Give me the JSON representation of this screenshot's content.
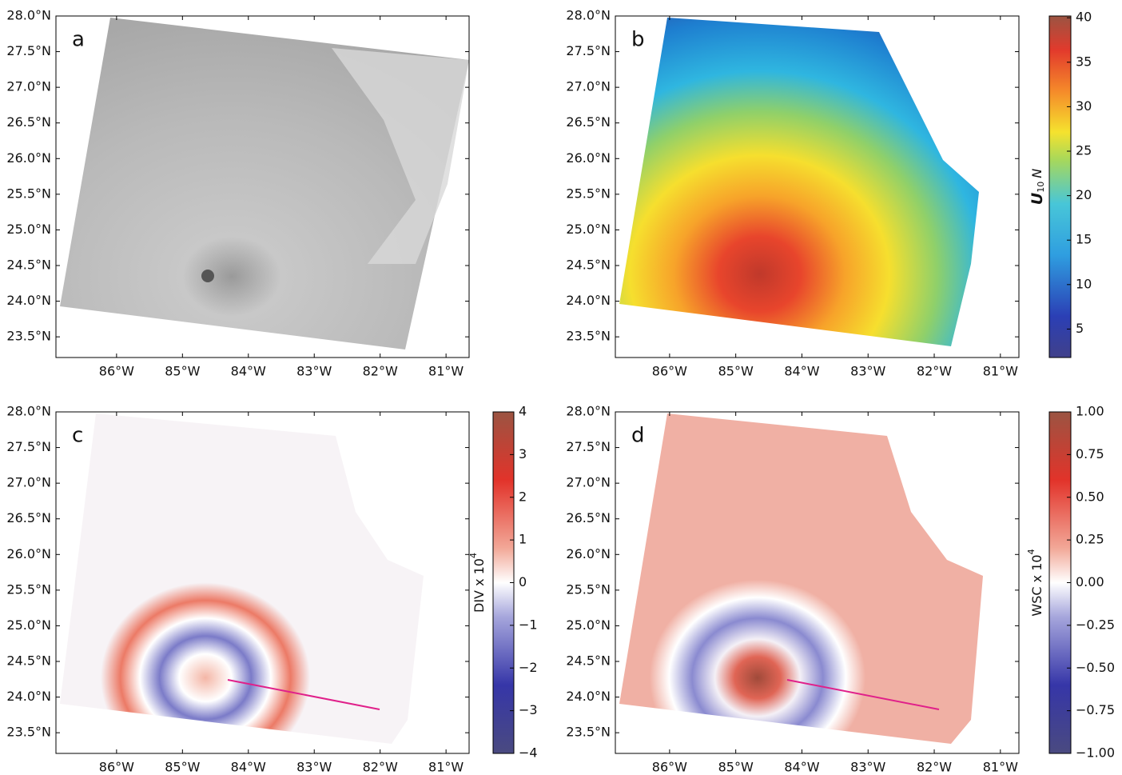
{
  "chart_data": [
    {
      "type": "map",
      "panel": "a",
      "xlim": [
        -86.92,
        -80.65
      ],
      "ylim": [
        23.21,
        28.0
      ],
      "xticks": [
        {
          "value": -86,
          "label": "86°W"
        },
        {
          "value": -85,
          "label": "85°W"
        },
        {
          "value": -84,
          "label": "84°W"
        },
        {
          "value": -83,
          "label": "83°W"
        },
        {
          "value": -82,
          "label": "82°W"
        },
        {
          "value": -81,
          "label": "81°W"
        }
      ],
      "yticks": [
        {
          "value": 23.5,
          "label": "23.5°N"
        },
        {
          "value": 24.0,
          "label": "24.0°N"
        },
        {
          "value": 24.5,
          "label": "24.5°N"
        },
        {
          "value": 25.0,
          "label": "25.0°N"
        },
        {
          "value": 25.5,
          "label": "25.5°N"
        },
        {
          "value": 26.0,
          "label": "26.0°N"
        },
        {
          "value": 26.5,
          "label": "26.5°N"
        },
        {
          "value": 27.0,
          "label": "27.0°N"
        },
        {
          "value": 27.5,
          "label": "27.5°N"
        },
        {
          "value": 28.0,
          "label": "28.0°N"
        }
      ]
    },
    {
      "type": "map",
      "panel": "b",
      "xlim": [
        -86.82,
        -80.72
      ],
      "ylim": [
        23.21,
        28.0
      ],
      "xticks": [
        {
          "value": -86,
          "label": "86°W"
        },
        {
          "value": -85,
          "label": "85°W"
        },
        {
          "value": -84,
          "label": "84°W"
        },
        {
          "value": -83,
          "label": "83°W"
        },
        {
          "value": -82,
          "label": "82°W"
        },
        {
          "value": -81,
          "label": "81°W"
        }
      ],
      "yticks": [
        {
          "value": 23.5,
          "label": "23.5°N"
        },
        {
          "value": 24.0,
          "label": "24.0°N"
        },
        {
          "value": 24.5,
          "label": "24.5°N"
        },
        {
          "value": 25.0,
          "label": "25.0°N"
        },
        {
          "value": 25.5,
          "label": "25.5°N"
        },
        {
          "value": 26.0,
          "label": "26.0°N"
        },
        {
          "value": 26.5,
          "label": "26.5°N"
        },
        {
          "value": 27.0,
          "label": "27.0°N"
        },
        {
          "value": 27.5,
          "label": "27.5°N"
        },
        {
          "value": 28.0,
          "label": "28.0°N"
        }
      ],
      "colorbar": {
        "label": {
          "text": "U",
          "sub": "10",
          "after": "N"
        },
        "lim": [
          1.8,
          40.2
        ],
        "ticks": [
          5,
          10,
          15,
          20,
          25,
          30,
          35,
          40
        ]
      }
    },
    {
      "type": "map",
      "panel": "c",
      "xlim": [
        -86.92,
        -80.65
      ],
      "ylim": [
        23.21,
        28.0
      ],
      "xticks": [
        {
          "value": -86,
          "label": "86°W"
        },
        {
          "value": -85,
          "label": "85°W"
        },
        {
          "value": -84,
          "label": "84°W"
        },
        {
          "value": -83,
          "label": "83°W"
        },
        {
          "value": -82,
          "label": "82°W"
        },
        {
          "value": -81,
          "label": "81°W"
        }
      ],
      "yticks": [
        {
          "value": 23.5,
          "label": "23.5°N"
        },
        {
          "value": 24.0,
          "label": "24.0°N"
        },
        {
          "value": 24.5,
          "label": "24.5°N"
        },
        {
          "value": 25.0,
          "label": "25.0°N"
        },
        {
          "value": 25.5,
          "label": "25.5°N"
        },
        {
          "value": 26.0,
          "label": "26.0°N"
        },
        {
          "value": 26.5,
          "label": "26.5°N"
        },
        {
          "value": 27.0,
          "label": "27.0°N"
        },
        {
          "value": 27.5,
          "label": "27.5°N"
        },
        {
          "value": 28.0,
          "label": "28.0°N"
        }
      ],
      "colorbar": {
        "label": {
          "text": "DIV x 10",
          "sup": "4"
        },
        "lim": [
          -4,
          4
        ],
        "ticks": [
          {
            "value": -4,
            "label": "−4"
          },
          {
            "value": -3,
            "label": "−3"
          },
          {
            "value": -2,
            "label": "−2"
          },
          {
            "value": -1,
            "label": "−1"
          },
          0,
          1,
          2,
          3,
          4
        ]
      }
    },
    {
      "type": "map",
      "panel": "d",
      "xlim": [
        -86.82,
        -80.72
      ],
      "ylim": [
        23.21,
        28.0
      ],
      "xticks": [
        {
          "value": -86,
          "label": "86°W"
        },
        {
          "value": -85,
          "label": "85°W"
        },
        {
          "value": -84,
          "label": "84°W"
        },
        {
          "value": -83,
          "label": "83°W"
        },
        {
          "value": -82,
          "label": "82°W"
        },
        {
          "value": -81,
          "label": "81°W"
        }
      ],
      "yticks": [
        {
          "value": 23.5,
          "label": "23.5°N"
        },
        {
          "value": 24.0,
          "label": "24.0°N"
        },
        {
          "value": 24.5,
          "label": "24.5°N"
        },
        {
          "value": 25.0,
          "label": "25.0°N"
        },
        {
          "value": 25.5,
          "label": "25.5°N"
        },
        {
          "value": 26.0,
          "label": "26.0°N"
        },
        {
          "value": 26.5,
          "label": "26.5°N"
        },
        {
          "value": 27.0,
          "label": "27.0°N"
        },
        {
          "value": 27.5,
          "label": "27.5°N"
        },
        {
          "value": 28.0,
          "label": "28.0°N"
        }
      ],
      "colorbar": {
        "label": {
          "text": "WSC x 10",
          "sup": "4"
        },
        "lim": [
          -1,
          1
        ],
        "ticks": [
          {
            "value": -1,
            "label": "−1.00"
          },
          {
            "value": -0.75,
            "label": "−0.75"
          },
          {
            "value": -0.5,
            "label": "−0.50"
          },
          {
            "value": -0.25,
            "label": "−0.25"
          },
          {
            "value": 0,
            "label": "0.00"
          },
          {
            "value": 0.25,
            "label": "0.25"
          },
          {
            "value": 0.5,
            "label": "0.50"
          },
          {
            "value": 0.75,
            "label": "0.75"
          },
          {
            "value": 1,
            "label": "1.00"
          }
        ]
      }
    }
  ]
}
